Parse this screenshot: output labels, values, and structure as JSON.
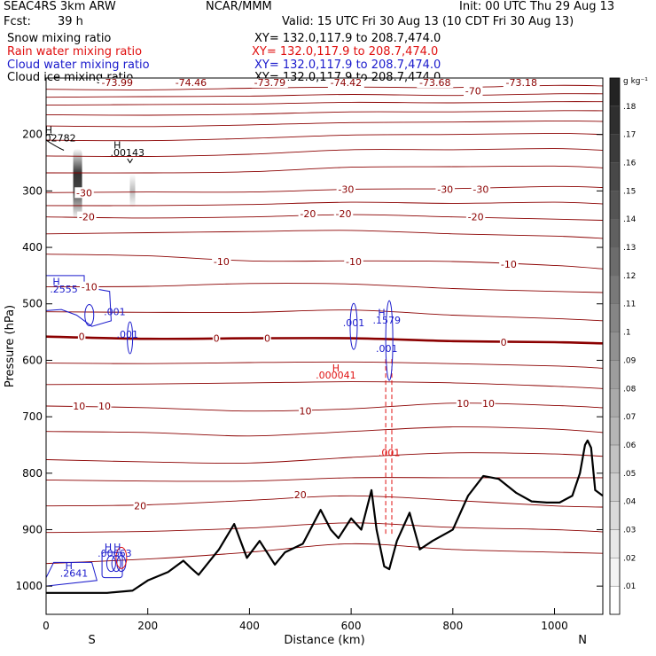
{
  "header": {
    "model": "SEAC4RS   3km ARW",
    "fcst_label": "Fcst:",
    "fcst_value": "39 h",
    "org": "NCAR/MMM",
    "init": "Init: 00 UTC Thu 29 Aug 13",
    "valid": "Valid: 15 UTC Fri 30 Aug 13 (10 CDT Fri 30 Aug 13)"
  },
  "fields": [
    {
      "name": "Snow mixing ratio",
      "xy": "XY= 132.0,117.9 to 208.7,474.0",
      "color": "#000000"
    },
    {
      "name": "Rain water mixing ratio",
      "xy": "XY= 132.0,117.9 to 208.7,474.0",
      "color": "#e01010"
    },
    {
      "name": "Cloud water mixing ratio",
      "xy": "XY= 132.0,117.9 to 208.7,474.0",
      "color": "#1a1acc"
    },
    {
      "name": "Cloud ice mixing ratio",
      "xy": "XY= 132.0,117.9 to 208.7,474.0",
      "color": "#000000"
    }
  ],
  "chart_data": {
    "type": "cross-section",
    "xlabel": "Distance (km)",
    "ylabel": "Pressure (hPa)",
    "xlim": [
      0,
      1095
    ],
    "ylim": [
      1050,
      100
    ],
    "x_ticks": [
      0,
      200,
      400,
      600,
      800,
      1000
    ],
    "y_ticks": [
      200,
      300,
      400,
      500,
      600,
      700,
      800,
      900,
      1000
    ],
    "x_end_labels": {
      "left": "S",
      "right": "N"
    },
    "colorbar": {
      "unit": "g kg⁻¹",
      "levels": [
        ".01",
        ".02",
        ".03",
        ".04",
        ".05",
        ".06",
        ".07",
        ".08",
        ".09",
        ".1",
        ".11",
        ".12",
        ".13",
        ".14",
        ".15",
        ".16",
        ".17",
        ".18"
      ]
    },
    "temperature_labels": [
      {
        "text": "-73.99",
        "x": 140,
        "p": 108
      },
      {
        "text": "-74.46",
        "x": 285,
        "p": 108
      },
      {
        "text": "-73.79",
        "x": 440,
        "p": 108
      },
      {
        "text": "-74.42",
        "x": 590,
        "p": 108
      },
      {
        "text": "-73.68",
        "x": 765,
        "p": 108
      },
      {
        "text": "-73.18",
        "x": 935,
        "p": 108
      },
      {
        "text": "-70",
        "x": 840,
        "p": 123
      },
      {
        "text": "-30",
        "x": 75,
        "p": 303
      },
      {
        "text": "-30",
        "x": 590,
        "p": 297
      },
      {
        "text": "-30",
        "x": 785,
        "p": 297
      },
      {
        "text": "-30",
        "x": 855,
        "p": 297
      },
      {
        "text": "-20",
        "x": 80,
        "p": 346
      },
      {
        "text": "-20",
        "x": 515,
        "p": 340
      },
      {
        "text": "-20",
        "x": 585,
        "p": 340
      },
      {
        "text": "-20",
        "x": 845,
        "p": 346
      },
      {
        "text": "-10",
        "x": 345,
        "p": 425
      },
      {
        "text": "-10",
        "x": 605,
        "p": 425
      },
      {
        "text": "-10",
        "x": 910,
        "p": 430
      },
      {
        "text": "-10",
        "x": 85,
        "p": 470
      },
      {
        "text": "0",
        "x": 70,
        "p": 558
      },
      {
        "text": "0",
        "x": 335,
        "p": 561
      },
      {
        "text": "0",
        "x": 435,
        "p": 561
      },
      {
        "text": "0",
        "x": 900,
        "p": 568
      },
      {
        "text": "10",
        "x": 65,
        "p": 681
      },
      {
        "text": "10",
        "x": 115,
        "p": 681
      },
      {
        "text": "10",
        "x": 510,
        "p": 690
      },
      {
        "text": "10",
        "x": 820,
        "p": 676
      },
      {
        "text": "10",
        "x": 870,
        "p": 676
      },
      {
        "text": "20",
        "x": 185,
        "p": 858
      },
      {
        "text": "20",
        "x": 500,
        "p": 838
      }
    ],
    "temperature_contours": [
      {
        "level": -70,
        "points": [
          [
            0,
            120
          ],
          [
            200,
            121
          ],
          [
            400,
            118
          ],
          [
            600,
            116
          ],
          [
            800,
            117
          ],
          [
            1000,
            113
          ],
          [
            1095,
            114
          ]
        ]
      },
      {
        "level": -65,
        "points": [
          [
            0,
            134
          ],
          [
            200,
            133
          ],
          [
            400,
            132
          ],
          [
            600,
            129
          ],
          [
            800,
            131
          ],
          [
            1000,
            128
          ],
          [
            1095,
            128
          ]
        ]
      },
      {
        "level": -60,
        "points": [
          [
            0,
            148
          ],
          [
            200,
            147
          ],
          [
            400,
            146
          ],
          [
            600,
            143
          ],
          [
            800,
            144
          ],
          [
            1000,
            142
          ],
          [
            1095,
            142
          ]
        ]
      },
      {
        "level": -55,
        "points": [
          [
            0,
            165
          ],
          [
            200,
            166
          ],
          [
            400,
            164
          ],
          [
            600,
            160
          ],
          [
            800,
            160
          ],
          [
            1000,
            158
          ],
          [
            1095,
            158
          ]
        ]
      },
      {
        "level": -50,
        "points": [
          [
            0,
            185
          ],
          [
            200,
            186
          ],
          [
            400,
            183
          ],
          [
            600,
            179
          ],
          [
            800,
            178
          ],
          [
            1000,
            176
          ],
          [
            1095,
            177
          ]
        ]
      },
      {
        "level": -45,
        "points": [
          [
            0,
            210
          ],
          [
            200,
            211
          ],
          [
            400,
            207
          ],
          [
            600,
            201
          ],
          [
            800,
            200
          ],
          [
            1000,
            198
          ],
          [
            1095,
            200
          ]
        ]
      },
      {
        "level": -40,
        "points": [
          [
            0,
            238
          ],
          [
            200,
            239
          ],
          [
            400,
            235
          ],
          [
            600,
            227
          ],
          [
            800,
            227
          ],
          [
            1000,
            225
          ],
          [
            1095,
            228
          ]
        ]
      },
      {
        "level": -35,
        "points": [
          [
            0,
            268
          ],
          [
            200,
            268
          ],
          [
            400,
            266
          ],
          [
            600,
            258
          ],
          [
            800,
            257
          ],
          [
            1000,
            256
          ],
          [
            1095,
            259
          ]
        ]
      },
      {
        "level": -30,
        "points": [
          [
            0,
            303
          ],
          [
            200,
            302
          ],
          [
            400,
            302
          ],
          [
            600,
            297
          ],
          [
            800,
            296
          ],
          [
            1000,
            292
          ],
          [
            1095,
            294
          ]
        ]
      },
      {
        "level": -25,
        "points": [
          [
            0,
            326
          ],
          [
            200,
            326
          ],
          [
            400,
            324
          ],
          [
            600,
            320
          ],
          [
            800,
            322
          ],
          [
            1000,
            320
          ],
          [
            1095,
            323
          ]
        ]
      },
      {
        "level": -20,
        "points": [
          [
            0,
            346
          ],
          [
            200,
            348
          ],
          [
            400,
            346
          ],
          [
            600,
            342
          ],
          [
            800,
            346
          ],
          [
            1000,
            350
          ],
          [
            1095,
            352
          ]
        ]
      },
      {
        "level": -15,
        "points": [
          [
            0,
            376
          ],
          [
            200,
            374
          ],
          [
            400,
            372
          ],
          [
            600,
            370
          ],
          [
            800,
            376
          ],
          [
            1000,
            380
          ],
          [
            1095,
            384
          ]
        ]
      },
      {
        "level": -10,
        "points": [
          [
            0,
            412
          ],
          [
            200,
            415
          ],
          [
            400,
            424
          ],
          [
            600,
            424
          ],
          [
            800,
            425
          ],
          [
            1000,
            432
          ],
          [
            1095,
            438
          ]
        ]
      },
      {
        "level": -5,
        "points": [
          [
            0,
            470
          ],
          [
            200,
            469
          ],
          [
            400,
            464
          ],
          [
            600,
            465
          ],
          [
            800,
            473
          ],
          [
            1000,
            478
          ],
          [
            1095,
            480
          ]
        ]
      },
      {
        "level": 0,
        "points": [
          [
            0,
            514
          ],
          [
            200,
            515
          ],
          [
            400,
            515
          ],
          [
            600,
            511
          ],
          [
            800,
            520
          ],
          [
            1000,
            526
          ],
          [
            1095,
            530
          ]
        ]
      },
      {
        "level": 0,
        "points": [
          [
            0,
            558
          ],
          [
            200,
            562
          ],
          [
            400,
            561
          ],
          [
            600,
            561
          ],
          [
            800,
            566
          ],
          [
            1000,
            568
          ],
          [
            1095,
            570
          ]
        ]
      },
      {
        "level": 5,
        "points": [
          [
            0,
            605
          ],
          [
            200,
            606
          ],
          [
            400,
            604
          ],
          [
            600,
            603
          ],
          [
            800,
            606
          ],
          [
            1000,
            610
          ],
          [
            1095,
            614
          ]
        ]
      },
      {
        "level": 5,
        "points": [
          [
            0,
            643
          ],
          [
            200,
            642
          ],
          [
            400,
            640
          ],
          [
            600,
            638
          ],
          [
            800,
            640
          ],
          [
            1000,
            646
          ],
          [
            1095,
            650
          ]
        ]
      },
      {
        "level": 10,
        "points": [
          [
            0,
            681
          ],
          [
            200,
            684
          ],
          [
            400,
            690
          ],
          [
            600,
            686
          ],
          [
            800,
            676
          ],
          [
            1000,
            680
          ],
          [
            1095,
            684
          ]
        ]
      },
      {
        "level": 10,
        "points": [
          [
            0,
            726
          ],
          [
            200,
            728
          ],
          [
            400,
            734
          ],
          [
            600,
            726
          ],
          [
            800,
            718
          ],
          [
            1000,
            722
          ],
          [
            1095,
            728
          ]
        ]
      },
      {
        "level": 15,
        "points": [
          [
            0,
            776
          ],
          [
            200,
            780
          ],
          [
            400,
            782
          ],
          [
            600,
            772
          ],
          [
            800,
            764
          ],
          [
            1000,
            766
          ],
          [
            1095,
            770
          ]
        ]
      },
      {
        "level": 15,
        "points": [
          [
            0,
            812
          ],
          [
            200,
            814
          ],
          [
            400,
            814
          ],
          [
            600,
            808
          ],
          [
            800,
            808
          ],
          [
            1000,
            808
          ],
          [
            1095,
            808
          ]
        ]
      },
      {
        "level": 20,
        "points": [
          [
            0,
            858
          ],
          [
            200,
            856
          ],
          [
            400,
            848
          ],
          [
            600,
            840
          ],
          [
            800,
            848
          ],
          [
            1000,
            858
          ],
          [
            1095,
            860
          ]
        ]
      },
      {
        "level": 20,
        "points": [
          [
            0,
            905
          ],
          [
            200,
            903
          ],
          [
            400,
            897
          ],
          [
            600,
            888
          ],
          [
            800,
            896
          ],
          [
            1000,
            900
          ],
          [
            1095,
            904
          ]
        ]
      },
      {
        "level": 25,
        "points": [
          [
            0,
            960
          ],
          [
            200,
            952
          ],
          [
            400,
            940
          ],
          [
            600,
            925
          ],
          [
            800,
            935
          ],
          [
            1000,
            940
          ],
          [
            1095,
            942
          ]
        ]
      }
    ],
    "terrain": {
      "x": [
        0,
        60,
        120,
        170,
        200,
        240,
        270,
        285,
        300,
        340,
        370,
        395,
        420,
        450,
        470,
        505,
        540,
        560,
        575,
        600,
        620,
        640,
        650,
        665,
        675,
        690,
        715,
        735,
        760,
        800,
        830,
        860,
        890,
        925,
        955,
        985,
        1010,
        1035,
        1050,
        1060,
        1065,
        1072,
        1080,
        1095
      ],
      "p": [
        1012,
        1012,
        1012,
        1008,
        990,
        975,
        955,
        968,
        980,
        935,
        890,
        950,
        920,
        962,
        940,
        925,
        865,
        900,
        915,
        880,
        900,
        830,
        900,
        965,
        970,
        920,
        870,
        935,
        920,
        900,
        840,
        805,
        810,
        835,
        850,
        852,
        852,
        840,
        800,
        750,
        742,
        755,
        830,
        840
      ]
    },
    "snow_mixing": {
      "column_1": {
        "x": 62,
        "p_top": 225,
        "p_bottom": 350,
        "max": ".17"
      },
      "column_2": {
        "x": 170,
        "p_top": 270,
        "p_bottom": 330,
        "max": ".05"
      }
    },
    "rain_water": {
      "max_label": {
        "text": "H",
        "x": 570,
        "p": 620
      },
      "max_value": {
        "text": ".000041",
        "x": 570,
        "p": 632
      },
      "contour_label": {
        "text": ".001",
        "x": 675,
        "p": 770
      },
      "dashed_columns": [
        668,
        680
      ],
      "p_top": 598,
      "p_bottom": 910
    },
    "cloud_water": {
      "labels": [
        {
          "text": "H",
          "x": 20,
          "p": 467
        },
        {
          "text": ".2555",
          "x": 35,
          "p": 480
        },
        {
          "text": ".001",
          "x": 135,
          "p": 520
        },
        {
          "text": ".001",
          "x": 160,
          "p": 560
        },
        {
          "text": ".001",
          "x": 605,
          "p": 540
        },
        {
          "text": "H",
          "x": 660,
          "p": 522
        },
        {
          "text": ".1579",
          "x": 670,
          "p": 535
        },
        {
          "text": ".001",
          "x": 670,
          "p": 585
        },
        {
          "text": "H",
          "x": 45,
          "p": 970
        },
        {
          "text": ".2641",
          "x": 55,
          "p": 983
        },
        {
          "text": "H",
          "x": 122,
          "p": 937
        },
        {
          "text": ".00663",
          "x": 135,
          "p": 948
        },
        {
          "text": "H",
          "x": 140,
          "p": 937
        }
      ]
    },
    "cloud_ice": {
      "labels": [
        {
          "text": "H",
          "x": 5,
          "p": 198
        },
        {
          "text": ".02782",
          "x": 25,
          "p": 212
        },
        {
          "text": "H",
          "x": 140,
          "p": 225
        },
        {
          "text": ".00143",
          "x": 160,
          "p": 238
        }
      ]
    }
  }
}
